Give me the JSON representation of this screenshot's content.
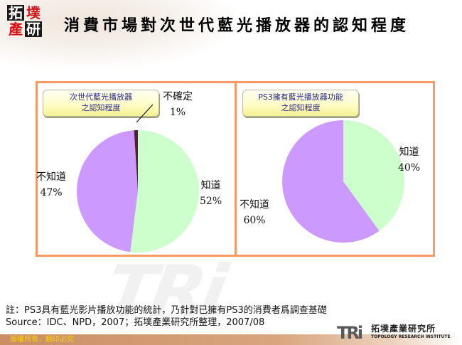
{
  "header": {
    "logo_chars": [
      "拓",
      "墣",
      "產",
      "研"
    ],
    "title": "消費市場對次世代藍光播放器的認知程度"
  },
  "colors": {
    "frame_border": "#f79a66",
    "slice_know": "#ccffcc",
    "slice_dont_know": "#cc99ff",
    "slice_unsure": "#5a1a3a",
    "label_text": "#2a2a8c",
    "footer_text": "#ffd200"
  },
  "chart_data": [
    {
      "type": "pie",
      "title": "次世代藍光播放器之認知程度",
      "title_lines": [
        "次世代藍光播放器",
        "之認知程度"
      ],
      "categories": [
        "知道",
        "不知道",
        "不確定"
      ],
      "values": [
        52,
        47,
        1
      ],
      "unit": "%",
      "labels": [
        {
          "name": "知道",
          "pct": "52%"
        },
        {
          "name": "不知道",
          "pct": "47%"
        },
        {
          "name": "不確定",
          "pct": "1%"
        }
      ],
      "start_angle": "12 o'clock, clockwise",
      "leader_line": "不確定"
    },
    {
      "type": "pie",
      "title": "PS3擁有藍光播放器功能之認知程度",
      "title_lines": [
        "PS3擁有藍光播放器功能",
        "之認知程度"
      ],
      "categories": [
        "知道",
        "不知道"
      ],
      "values": [
        40,
        60
      ],
      "unit": "%",
      "labels": [
        {
          "name": "知道",
          "pct": "40%"
        },
        {
          "name": "不知道",
          "pct": "60%"
        }
      ],
      "start_angle": "12 o'clock, clockwise"
    }
  ],
  "notes": {
    "line1": "註：PS3具有藍光影片播放功能的統計，乃針對已擁有PS3的消費者爲調查基礎",
    "line2": "Source：IDC、NPD，2007；拓墣產業研究所整理，2007/08"
  },
  "footer": {
    "copyright": "版權所有．翻印必究",
    "brand_mark": "TRi",
    "brand_cn": "拓墣產業研究所",
    "brand_en": "TOPOLOGY RESEARCH INSTITUTE"
  },
  "watermark": "TRi"
}
